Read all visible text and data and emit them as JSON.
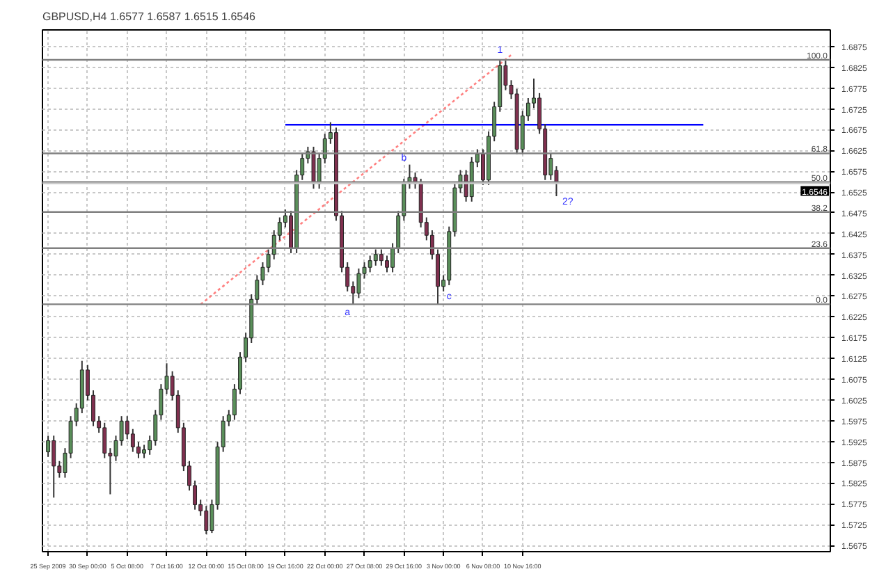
{
  "chart_data": {
    "type": "candlestick",
    "title": "GBPUSD,H4  1.6577 1.6587 1.6515 1.6546",
    "categories": [
      "25 Sep 2009",
      null,
      null,
      null,
      null,
      null,
      null,
      "30 Sep 00:00",
      null,
      null,
      null,
      null,
      null,
      null,
      "5 Oct 08:00",
      null,
      null,
      null,
      null,
      null,
      null,
      "7 Oct 16:00",
      null,
      null,
      null,
      null,
      null,
      null,
      "12 Oct 00:00",
      null,
      null,
      null,
      null,
      null,
      null,
      "15 Oct 08:00",
      null,
      null,
      null,
      null,
      null,
      null,
      "19 Oct 16:00",
      null,
      null,
      null,
      null,
      null,
      null,
      "22 Oct 00:00",
      null,
      null,
      null,
      null,
      null,
      null,
      "27 Oct 08:00",
      null,
      null,
      null,
      null,
      null,
      null,
      "29 Oct 16:00",
      null,
      null,
      null,
      null,
      null,
      null,
      "3 Nov 00:00",
      null,
      null,
      null,
      null,
      null,
      null,
      "6 Nov 08:00",
      null,
      null,
      null,
      null,
      null,
      null,
      "10 Nov 16:00",
      null,
      null,
      null,
      null,
      null,
      null,
      null,
      null,
      null,
      null,
      null,
      null,
      null,
      null,
      null,
      null,
      null,
      null,
      null,
      null,
      null,
      null,
      null,
      null,
      null,
      null,
      null,
      null,
      null,
      null,
      null,
      null,
      null,
      null,
      null,
      null,
      null,
      null,
      null,
      null,
      null,
      null,
      null,
      null,
      null,
      null,
      null,
      null,
      null,
      null,
      null,
      null,
      null,
      null
    ],
    "ohlc": [
      [
        1.59,
        1.5939,
        1.5888,
        1.5927
      ],
      [
        1.5927,
        1.5939,
        1.579,
        1.5866
      ],
      [
        1.5866,
        1.5878,
        1.5838,
        1.585
      ],
      [
        1.585,
        1.5909,
        1.5838,
        1.5897
      ],
      [
        1.5897,
        1.5986,
        1.5885,
        1.5974
      ],
      [
        1.5974,
        1.6017,
        1.5962,
        1.6005
      ],
      [
        1.6005,
        1.6119,
        1.5993,
        1.6097
      ],
      [
        1.6097,
        1.6109,
        1.6024,
        1.6036
      ],
      [
        1.6036,
        1.6048,
        1.5962,
        1.5974
      ],
      [
        1.5974,
        1.5986,
        1.5946,
        1.5958
      ],
      [
        1.5958,
        1.597,
        1.5885,
        1.5897
      ],
      [
        1.5897,
        1.5909,
        1.5798,
        1.589
      ],
      [
        1.589,
        1.5939,
        1.5878,
        1.5927
      ],
      [
        1.5927,
        1.5986,
        1.5915,
        1.5974
      ],
      [
        1.5974,
        1.5986,
        1.5931,
        1.5943
      ],
      [
        1.5943,
        1.5955,
        1.59,
        1.5912
      ],
      [
        1.5912,
        1.5924,
        1.5885,
        1.5897
      ],
      [
        1.5897,
        1.5917,
        1.5885,
        1.5905
      ],
      [
        1.5905,
        1.5939,
        1.5893,
        1.5927
      ],
      [
        1.5927,
        1.6001,
        1.5915,
        1.5989
      ],
      [
        1.5989,
        1.6063,
        1.5977,
        1.6051
      ],
      [
        1.6051,
        1.6113,
        1.6039,
        1.6082
      ],
      [
        1.6082,
        1.6094,
        1.6024,
        1.6036
      ],
      [
        1.6036,
        1.6048,
        1.5946,
        1.5958
      ],
      [
        1.5958,
        1.597,
        1.5854,
        1.5866
      ],
      [
        1.5866,
        1.5878,
        1.5807,
        1.5819
      ],
      [
        1.5819,
        1.5831,
        1.5761,
        1.5773
      ],
      [
        1.5773,
        1.5785,
        1.5746,
        1.5758
      ],
      [
        1.5758,
        1.577,
        1.5702,
        1.5711
      ],
      [
        1.5711,
        1.5785,
        1.5705,
        1.5773
      ],
      [
        1.5773,
        1.5924,
        1.5761,
        1.5912
      ],
      [
        1.5912,
        1.5986,
        1.59,
        1.5974
      ],
      [
        1.5974,
        1.6001,
        1.5962,
        1.5989
      ],
      [
        1.5989,
        1.6063,
        1.5977,
        1.6051
      ],
      [
        1.6051,
        1.614,
        1.6039,
        1.6128
      ],
      [
        1.6128,
        1.6186,
        1.6116,
        1.6174
      ],
      [
        1.6174,
        1.6279,
        1.6162,
        1.6267
      ],
      [
        1.6267,
        1.6325,
        1.6255,
        1.6313
      ],
      [
        1.6313,
        1.6356,
        1.6301,
        1.6344
      ],
      [
        1.6344,
        1.6387,
        1.6332,
        1.6375
      ],
      [
        1.6375,
        1.6433,
        1.6363,
        1.6421
      ],
      [
        1.6421,
        1.6464,
        1.6409,
        1.6452
      ],
      [
        1.6452,
        1.6483,
        1.644,
        1.6468
      ],
      [
        1.6468,
        1.648,
        1.6378,
        1.639
      ],
      [
        1.639,
        1.6578,
        1.6378,
        1.6566
      ],
      [
        1.6566,
        1.6618,
        1.6554,
        1.6606
      ],
      [
        1.6606,
        1.6634,
        1.6594,
        1.6622
      ],
      [
        1.6622,
        1.6634,
        1.6533,
        1.6545
      ],
      [
        1.6545,
        1.6618,
        1.6533,
        1.6606
      ],
      [
        1.6606,
        1.6665,
        1.6594,
        1.6653
      ],
      [
        1.6653,
        1.6693,
        1.6641,
        1.6668
      ],
      [
        1.6668,
        1.668,
        1.6456,
        1.6468
      ],
      [
        1.6468,
        1.648,
        1.6332,
        1.6344
      ],
      [
        1.6344,
        1.6356,
        1.6286,
        1.6298
      ],
      [
        1.6298,
        1.631,
        1.6255,
        1.6282
      ],
      [
        1.6282,
        1.6341,
        1.627,
        1.6329
      ],
      [
        1.6329,
        1.6356,
        1.6317,
        1.6344
      ],
      [
        1.6344,
        1.6372,
        1.6332,
        1.636
      ],
      [
        1.636,
        1.6387,
        1.6348,
        1.6375
      ],
      [
        1.6375,
        1.6387,
        1.6348,
        1.636
      ],
      [
        1.636,
        1.6372,
        1.6332,
        1.6344
      ],
      [
        1.6344,
        1.6402,
        1.6332,
        1.639
      ],
      [
        1.639,
        1.648,
        1.6378,
        1.6468
      ],
      [
        1.6468,
        1.6557,
        1.6456,
        1.6545
      ],
      [
        1.6545,
        1.6591,
        1.6533,
        1.656
      ],
      [
        1.656,
        1.6572,
        1.6533,
        1.6545
      ],
      [
        1.6545,
        1.6557,
        1.644,
        1.6452
      ],
      [
        1.6452,
        1.6464,
        1.6409,
        1.6421
      ],
      [
        1.6421,
        1.6433,
        1.6363,
        1.6375
      ],
      [
        1.6375,
        1.6387,
        1.6255,
        1.6298
      ],
      [
        1.6298,
        1.6325,
        1.6286,
        1.6313
      ],
      [
        1.6313,
        1.6442,
        1.6301,
        1.643
      ],
      [
        1.643,
        1.6547,
        1.6418,
        1.6535
      ],
      [
        1.6535,
        1.6578,
        1.6523,
        1.6566
      ],
      [
        1.6566,
        1.6578,
        1.6502,
        1.6514
      ],
      [
        1.6514,
        1.6609,
        1.6502,
        1.6597
      ],
      [
        1.6597,
        1.6628,
        1.6585,
        1.6616
      ],
      [
        1.6616,
        1.6628,
        1.6542,
        1.6554
      ],
      [
        1.6554,
        1.6671,
        1.6542,
        1.6659
      ],
      [
        1.6659,
        1.6742,
        1.6647,
        1.673
      ],
      [
        1.673,
        1.6844,
        1.6718,
        1.6829
      ],
      [
        1.6829,
        1.6841,
        1.677,
        1.6782
      ],
      [
        1.6782,
        1.6794,
        1.6749,
        1.6761
      ],
      [
        1.6761,
        1.6773,
        1.6616,
        1.6628
      ],
      [
        1.6628,
        1.672,
        1.6616,
        1.6708
      ],
      [
        1.6708,
        1.6751,
        1.6696,
        1.6739
      ],
      [
        1.6739,
        1.6798,
        1.6727,
        1.6751
      ],
      [
        1.6751,
        1.6763,
        1.6665,
        1.6677
      ],
      [
        1.6677,
        1.6689,
        1.6554,
        1.6566
      ],
      [
        1.6566,
        1.6618,
        1.6554,
        1.6606
      ],
      [
        1.6577,
        1.6587,
        1.6515,
        1.6546
      ],
      null,
      null,
      null,
      null,
      null,
      null,
      null,
      null,
      null,
      null,
      null,
      null,
      null,
      null,
      null,
      null,
      null,
      null,
      null,
      null,
      null,
      null,
      null,
      null,
      null,
      null,
      null,
      null,
      null,
      null,
      null,
      null,
      null,
      null,
      null,
      null,
      null,
      null,
      null,
      null,
      null,
      null,
      null,
      null,
      null,
      null,
      null,
      null
    ],
    "colors": [
      "#5a8f5a",
      "#80304f",
      "#80304f",
      "#5a8f5a",
      "#5a8f5a",
      "#5a8f5a",
      "#5a8f5a",
      "#80304f",
      "#80304f",
      "#80304f",
      "#80304f",
      "#80304f",
      "#5a8f5a",
      "#5a8f5a",
      "#80304f",
      "#80304f",
      "#80304f",
      "#5a8f5a",
      "#5a8f5a",
      "#5a8f5a",
      "#5a8f5a",
      "#5a8f5a",
      "#80304f",
      "#80304f",
      "#80304f",
      "#80304f",
      "#80304f",
      "#80304f",
      "#80304f",
      "#5a8f5a",
      "#5a8f5a",
      "#5a8f5a",
      "#5a8f5a",
      "#5a8f5a",
      "#5a8f5a",
      "#5a8f5a",
      "#5a8f5a",
      "#5a8f5a",
      "#5a8f5a",
      "#5a8f5a",
      "#5a8f5a",
      "#5a8f5a",
      "#5a8f5a",
      "#80304f",
      "#5a8f5a",
      "#5a8f5a",
      "#5a8f5a",
      "#80304f",
      "#5a8f5a",
      "#5a8f5a",
      "#5a8f5a",
      "#80304f",
      "#80304f",
      "#80304f",
      "#80304f",
      "#5a8f5a",
      "#5a8f5a",
      "#5a8f5a",
      "#5a8f5a",
      "#80304f",
      "#80304f",
      "#5a8f5a",
      "#5a8f5a",
      "#5a8f5a",
      "#5a8f5a",
      "#80304f",
      "#80304f",
      "#80304f",
      "#80304f",
      "#80304f",
      "#5a8f5a",
      "#5a8f5a",
      "#5a8f5a",
      "#5a8f5a",
      "#80304f",
      "#5a8f5a",
      "#5a8f5a",
      "#80304f",
      "#5a8f5a",
      "#5a8f5a",
      "#5a8f5a",
      "#80304f",
      "#80304f",
      "#80304f",
      "#5a8f5a",
      "#5a8f5a",
      "#5a8f5a",
      "#80304f",
      "#80304f",
      "#5a8f5a",
      "#80304f",
      null,
      null,
      null,
      null,
      null,
      null,
      null,
      null,
      null,
      null,
      null,
      null,
      null,
      null,
      null,
      null,
      null,
      null,
      null,
      null,
      null,
      null,
      null,
      null,
      null,
      null,
      null,
      null,
      null,
      null,
      null,
      null,
      null,
      null,
      null,
      null,
      null,
      null,
      null,
      null,
      null,
      null,
      null,
      null,
      null,
      null,
      null,
      null
    ],
    "series": [
      {
        "type": "line",
        "color": "#ff8080",
        "line_style": "dotted",
        "values": [
          null,
          null,
          null,
          null,
          null,
          null,
          null,
          null,
          null,
          null,
          null,
          null,
          null,
          null,
          null,
          null,
          null,
          null,
          null,
          null,
          null,
          null,
          null,
          null,
          null,
          null,
          null,
          1.6255,
          null,
          null,
          null,
          null,
          null,
          null,
          null,
          null,
          null,
          null,
          null,
          null,
          null,
          null,
          null,
          null,
          null,
          null,
          null,
          null,
          null,
          null,
          null,
          null,
          null,
          null,
          null,
          null,
          null,
          null,
          null,
          null,
          null,
          null,
          null,
          null,
          null,
          null,
          null,
          null,
          null,
          null,
          null,
          null,
          null,
          null,
          null,
          null,
          null,
          null,
          null,
          null,
          null,
          null,
          1.6855,
          null,
          null,
          null,
          null,
          null,
          null,
          null,
          null,
          null,
          null,
          null,
          null,
          null,
          null,
          null,
          null,
          null,
          null,
          null,
          null,
          null,
          null,
          null,
          null,
          null,
          null,
          null,
          null,
          null,
          null,
          null,
          null,
          null,
          null,
          null,
          null,
          null,
          null,
          null,
          null,
          null,
          null,
          null,
          null,
          null,
          null,
          null,
          null,
          null,
          null,
          null,
          null,
          null,
          null,
          null,
          null
        ]
      },
      {
        "type": "line",
        "color": "#0000ff",
        "line_style": "solid",
        "values": [
          null,
          null,
          null,
          null,
          null,
          null,
          null,
          null,
          null,
          null,
          null,
          null,
          null,
          null,
          null,
          null,
          null,
          null,
          null,
          null,
          null,
          null,
          null,
          null,
          null,
          null,
          null,
          null,
          null,
          null,
          null,
          null,
          null,
          null,
          null,
          null,
          null,
          null,
          null,
          null,
          null,
          null,
          1.6687,
          null,
          null,
          null,
          null,
          null,
          null,
          null,
          null,
          null,
          null,
          null,
          null,
          null,
          null,
          null,
          null,
          null,
          null,
          null,
          null,
          null,
          null,
          null,
          null,
          null,
          null,
          null,
          null,
          null,
          null,
          null,
          null,
          null,
          null,
          null,
          null,
          null,
          null,
          null,
          null,
          null,
          null,
          null,
          null,
          null,
          null,
          null,
          null,
          null,
          null,
          null,
          null,
          null,
          null,
          null,
          null,
          null,
          null,
          null,
          null,
          null,
          null,
          null,
          null,
          null,
          null,
          null,
          null,
          null,
          null,
          null,
          null,
          null,
          1.6687,
          null,
          null,
          null,
          null,
          null,
          null,
          null,
          null,
          null,
          null,
          null,
          null,
          null,
          null,
          null,
          null,
          null,
          null,
          null,
          null,
          null,
          null
        ]
      }
    ],
    "ref_lines": [
      {
        "axis": "y",
        "value": 1.6843,
        "color": "#808080"
      },
      {
        "axis": "y",
        "value": 1.6618,
        "color": "#808080"
      },
      {
        "axis": "y",
        "value": 1.6549,
        "color": "#808080"
      },
      {
        "axis": "y",
        "value": 1.6477,
        "color": "#808080"
      },
      {
        "axis": "y",
        "value": 1.639,
        "color": "#808080"
      },
      {
        "axis": "y",
        "value": 1.6255,
        "color": "#808080"
      },
      {
        "axis": "y",
        "value": 1.6546,
        "label": "1.6546",
        "color": "#c8c8c8"
      }
    ],
    "annotations": [
      {
        "text": "100.0",
        "y": 1.6843
      },
      {
        "text": "61.8",
        "y": 1.6618
      },
      {
        "text": "50.0",
        "y": 1.6549
      },
      {
        "text": "38.2",
        "y": 1.6477
      },
      {
        "text": "23.6",
        "y": 1.639
      },
      {
        "text": "0.0",
        "y": 1.6255
      },
      {
        "text": "a",
        "y": 1.6255
      },
      {
        "text": "b",
        "y": 1.6594
      },
      {
        "text": "c",
        "y": 1.6261
      },
      {
        "text": "1",
        "y": 1.686
      },
      "2?"
    ],
    "ylim": [
      1.566,
      1.6915
    ],
    "yticks": [
      1.5675,
      1.5725,
      1.5775,
      1.5825,
      1.5875,
      1.5925,
      1.5975,
      1.6025,
      1.6075,
      1.6125,
      1.6175,
      1.6225,
      1.6275,
      1.6325,
      1.6375,
      1.6425,
      1.6475,
      1.6525,
      1.6575,
      1.6625,
      1.6675,
      1.6725,
      1.6775,
      1.6825,
      1.6875
    ],
    "grid": true,
    "marker": "none"
  }
}
